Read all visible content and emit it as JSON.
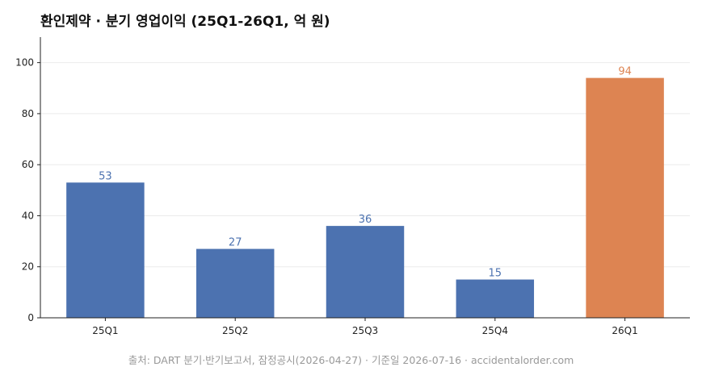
{
  "title": "환인제약 · 분기 영업이익 (25Q1-26Q1, 억 원)",
  "source": "출처: DART 분기·반기보고서, 잠정공시(2026-04-27) · 기준일 2026-07-16 · accidentalorder.com",
  "colors": {
    "bar": "#4c72b0",
    "highlight": "#dd8452",
    "grid": "#ebebeb",
    "axis": "#222222"
  },
  "chart_data": {
    "type": "bar",
    "title": "환인제약 · 분기 영업이익 (25Q1-26Q1, 억 원)",
    "categories": [
      "25Q1",
      "25Q2",
      "25Q3",
      "25Q4",
      "26Q1"
    ],
    "values": [
      53,
      27,
      36,
      15,
      94
    ],
    "value_labels": [
      "53",
      "27",
      "36",
      "15",
      "94"
    ],
    "highlighted": [
      "26Q1"
    ],
    "xlabel": "",
    "ylabel": "",
    "ylim": [
      0,
      110
    ],
    "yticks": [
      0,
      20,
      40,
      60,
      80,
      100
    ],
    "ytick_labels": [
      "0",
      "20",
      "40",
      "60",
      "80",
      "100"
    ],
    "grid": "horizontal"
  }
}
